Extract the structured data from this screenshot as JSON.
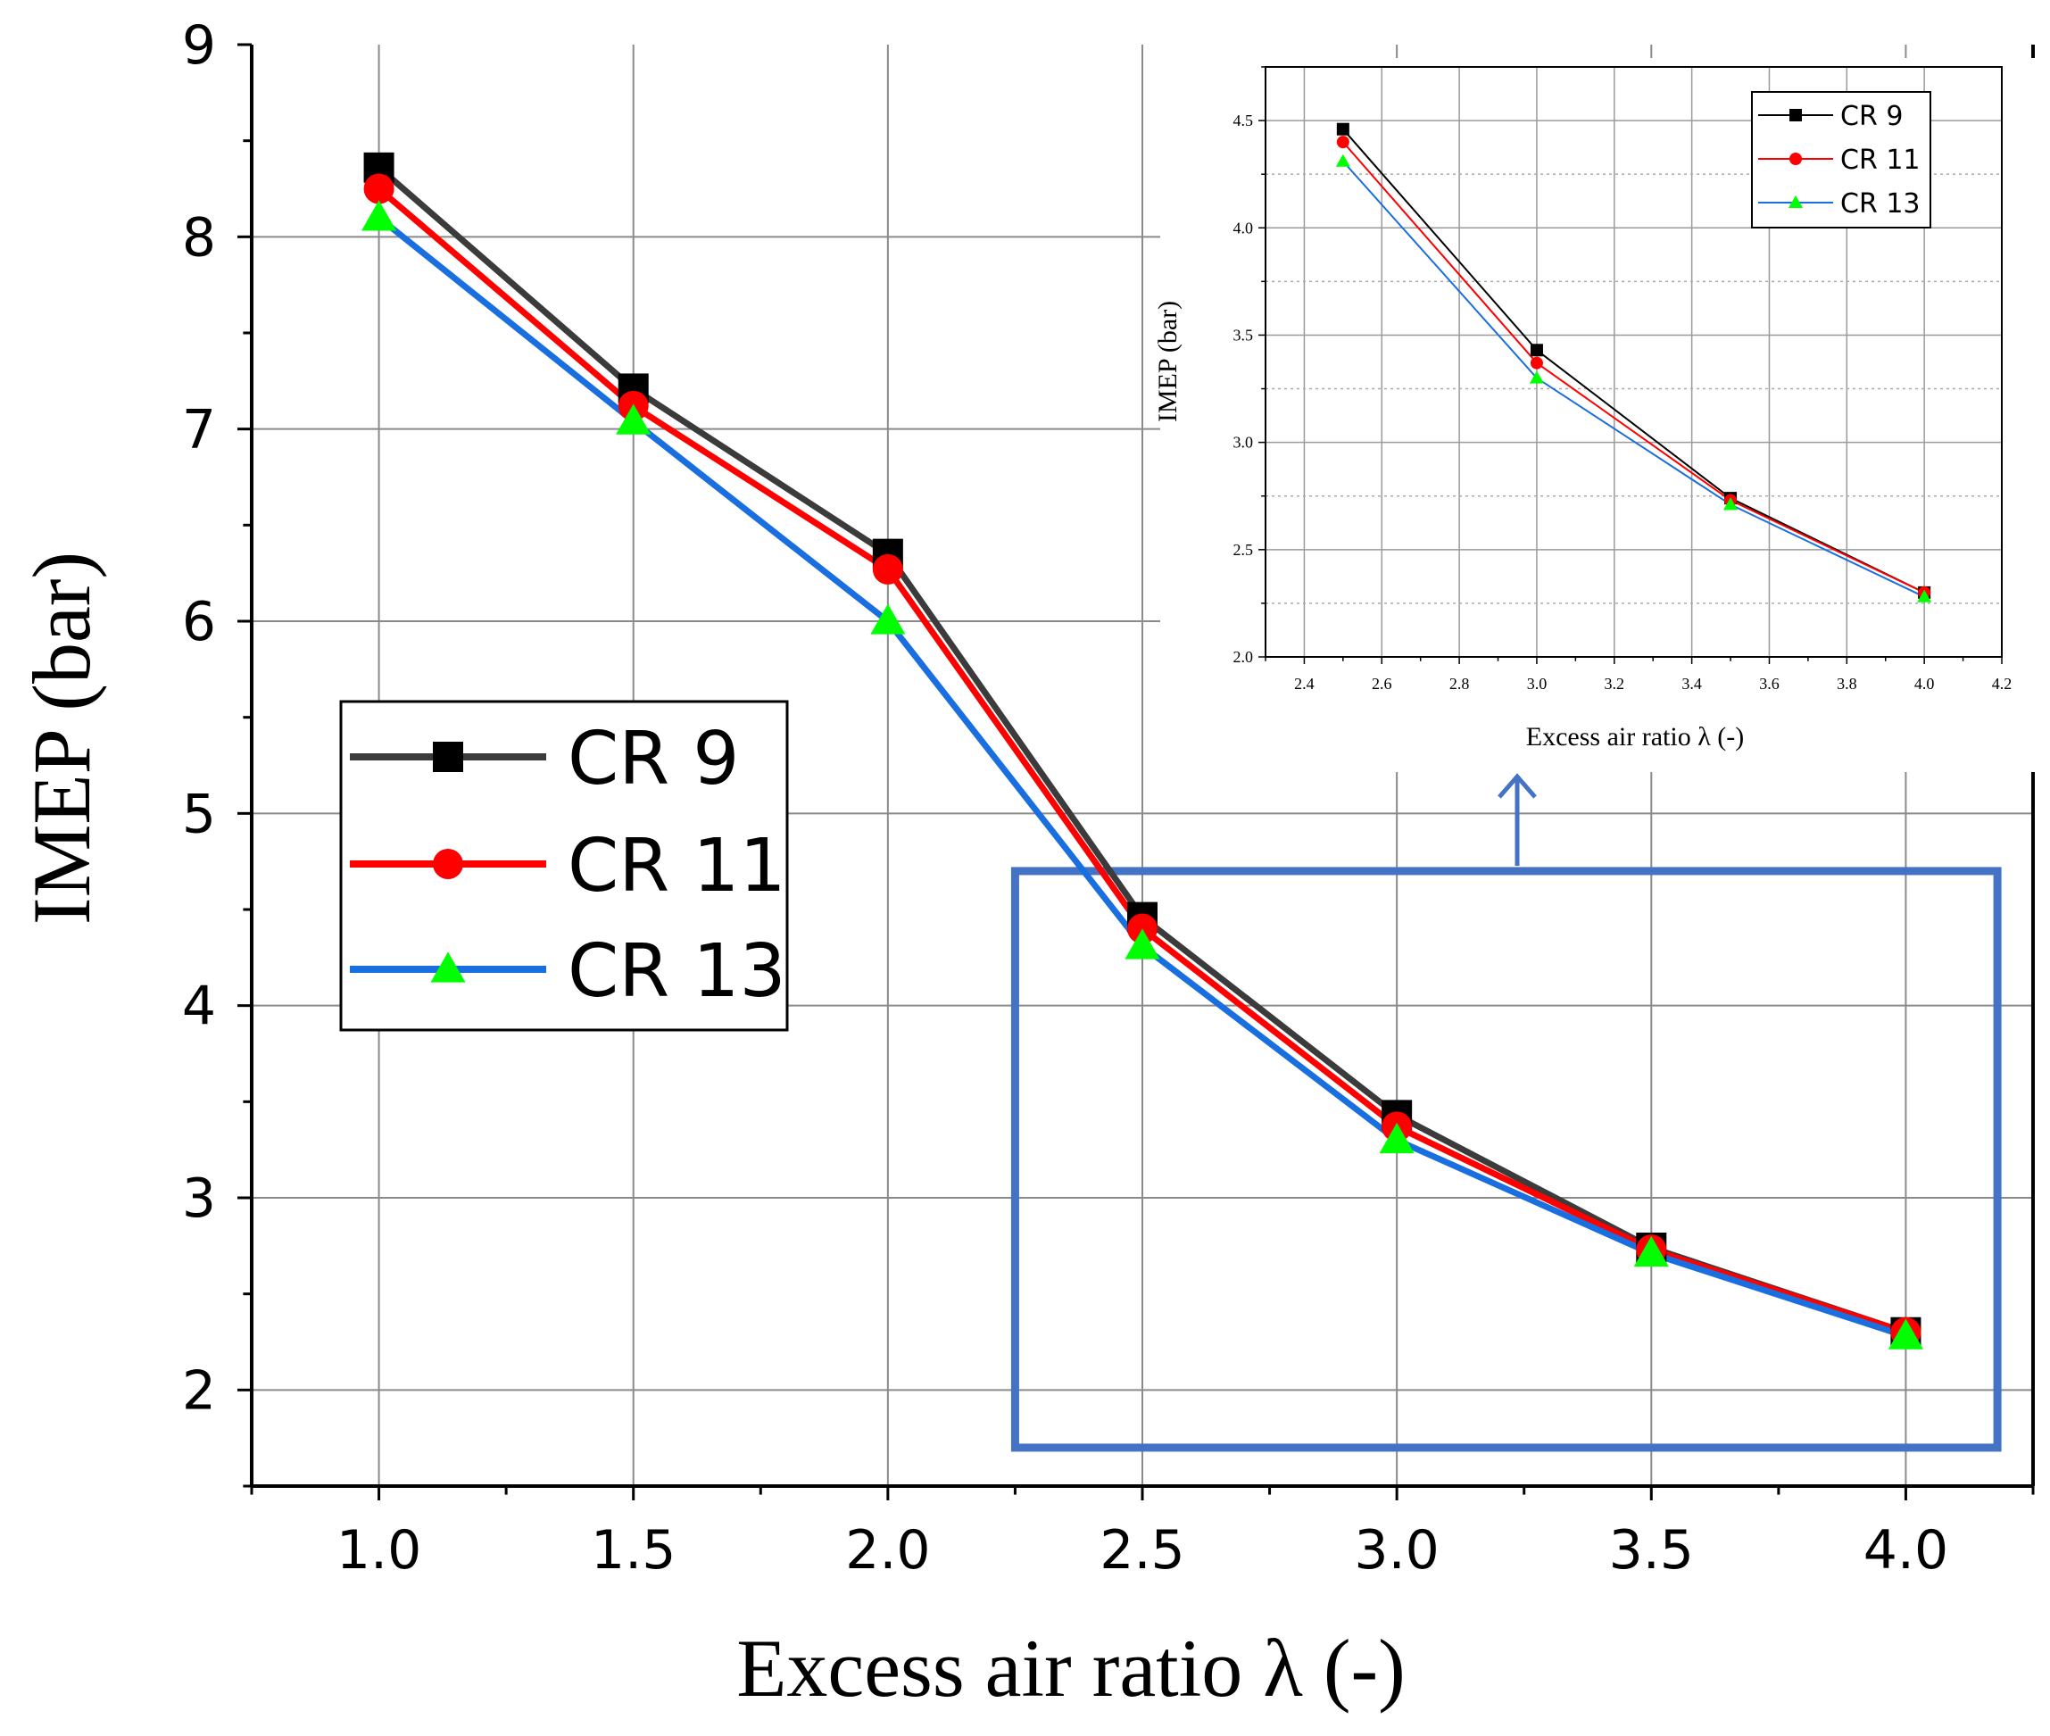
{
  "chart_data": [
    {
      "type": "line",
      "role": "main",
      "xlabel": "Excess air ratio λ (-)",
      "ylabel": "IMEP (bar)",
      "xlim": [
        0.75,
        4.25
      ],
      "ylim": [
        1.5,
        9
      ],
      "x_ticks": [
        "1.0",
        "1.5",
        "2.0",
        "2.5",
        "3.0",
        "3.5",
        "4.0"
      ],
      "y_ticks": [
        "2",
        "3",
        "4",
        "5",
        "6",
        "7",
        "8",
        "9"
      ],
      "grid": true,
      "legend_position": "center-left",
      "x": [
        1.0,
        1.5,
        2.0,
        2.5,
        3.0,
        3.5,
        4.0
      ],
      "series": [
        {
          "name": "CR 9",
          "color": "#3b3b3b",
          "marker": "square",
          "values": [
            8.36,
            7.21,
            6.35,
            4.46,
            3.43,
            2.74,
            2.3
          ]
        },
        {
          "name": "CR 11",
          "color": "#ff0000",
          "marker": "circle",
          "values": [
            8.25,
            7.12,
            6.27,
            4.4,
            3.37,
            2.73,
            2.3
          ]
        },
        {
          "name": "CR 13",
          "color": "#1a6fe0",
          "marker": "triangle",
          "values": [
            8.1,
            7.04,
            6.0,
            4.31,
            3.3,
            2.71,
            2.28
          ]
        }
      ],
      "highlight_box": {
        "x_range": [
          2.25,
          4.18
        ],
        "y_range": [
          1.7,
          4.7
        ],
        "color": "#4472c4"
      }
    },
    {
      "type": "line",
      "role": "inset",
      "xlabel": "Excess air ratio λ (-)",
      "ylabel": "IMEP (bar)",
      "xlim": [
        2.3,
        4.2
      ],
      "ylim": [
        2.0,
        4.75
      ],
      "x_ticks": [
        "2.4",
        "2.6",
        "2.8",
        "3.0",
        "3.2",
        "3.4",
        "3.6",
        "3.8",
        "4.0",
        "4.2"
      ],
      "y_ticks": [
        "2.0",
        "2.5",
        "3.0",
        "3.5",
        "4.0",
        "4.5"
      ],
      "grid": true,
      "legend_position": "top-right",
      "x": [
        2.5,
        3.0,
        3.5,
        4.0
      ],
      "series": [
        {
          "name": "CR 9",
          "color": "#000000",
          "marker": "square",
          "values": [
            4.46,
            3.43,
            2.74,
            2.3
          ]
        },
        {
          "name": "CR 11",
          "color": "#ff0000",
          "marker": "circle",
          "values": [
            4.4,
            3.37,
            2.73,
            2.3
          ]
        },
        {
          "name": "CR 13",
          "color": "#1a6fe0",
          "marker": "triangle",
          "values": [
            4.31,
            3.3,
            2.71,
            2.28
          ]
        }
      ]
    }
  ]
}
